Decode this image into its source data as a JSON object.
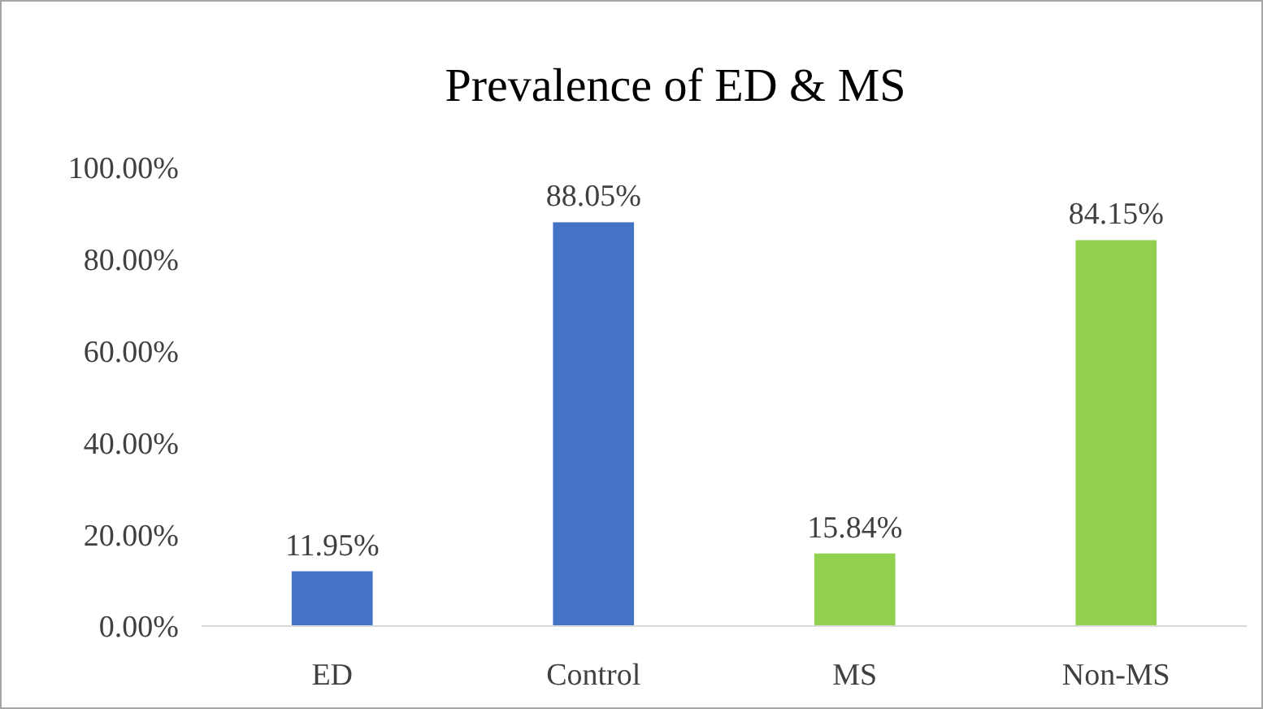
{
  "chart_data": {
    "type": "bar",
    "title": "Prevalence of ED & MS",
    "categories": [
      "ED",
      "Control",
      "MS",
      "Non-MS"
    ],
    "values": [
      11.95,
      88.05,
      15.84,
      84.15
    ],
    "colors": [
      "#4472c4",
      "#4472c4",
      "#92d050",
      "#92d050"
    ],
    "value_labels": [
      "11.95%",
      "88.05%",
      "15.84%",
      "84.15%"
    ],
    "ylim": [
      0,
      100
    ],
    "yticks": [
      {
        "value": 0,
        "label": "0.00%"
      },
      {
        "value": 20,
        "label": "20.00%"
      },
      {
        "value": 40,
        "label": "40.00%"
      },
      {
        "value": 60,
        "label": "60.00%"
      },
      {
        "value": 80,
        "label": "80.00%"
      },
      {
        "value": 100,
        "label": "100.00%"
      }
    ],
    "grid": false
  }
}
